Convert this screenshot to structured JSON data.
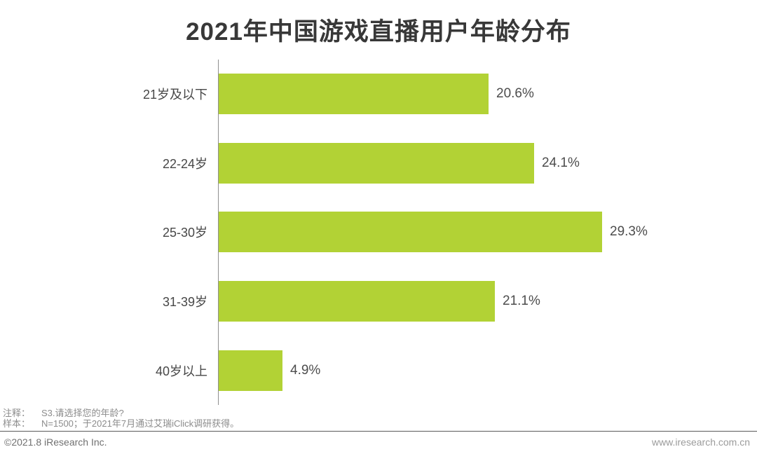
{
  "chart_data": {
    "type": "bar",
    "orientation": "horizontal",
    "title": "2021年中国游戏直播用户年龄分布",
    "categories": [
      "21岁及以下",
      "22-24岁",
      "25-30岁",
      "31-39岁",
      "40岁以上"
    ],
    "values": [
      20.6,
      24.1,
      29.3,
      21.1,
      4.9
    ],
    "value_labels": [
      "20.6%",
      "24.1%",
      "29.3%",
      "21.1%",
      "4.9%"
    ],
    "xlabel": "",
    "ylabel": "",
    "xlim": [
      0,
      30
    ],
    "bar_color": "#b2d235",
    "axis_color": "#8f8f8f",
    "grid": "off",
    "legend": "none"
  },
  "notes": {
    "note_label": "注释：",
    "note_text": "S3.请选择您的年龄?",
    "sample_label": "样本：",
    "sample_text": "N=1500；于2021年7月通过艾瑞iClick调研获得。"
  },
  "footer": {
    "copyright": "©2021.8 iResearch Inc.",
    "website": "www.iresearch.com.cn"
  }
}
